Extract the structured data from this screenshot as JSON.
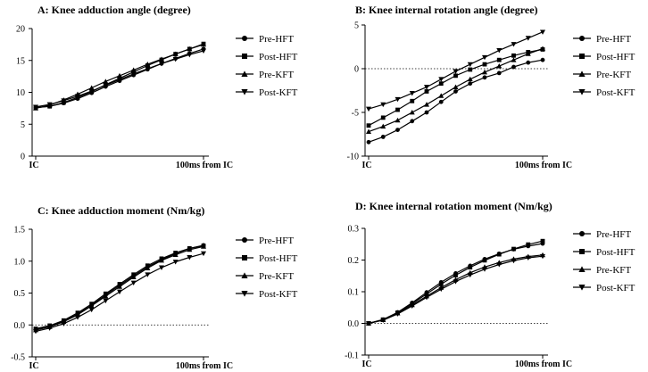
{
  "chart_data": [
    {
      "type": "line",
      "title": "A: Knee adduction angle (degree)",
      "x_tick_labels": [
        "IC",
        "100ms from IC"
      ],
      "ylim": [
        0,
        20
      ],
      "y_ticks": [
        0,
        5,
        10,
        15,
        20
      ],
      "y_tick_labels": [
        "0",
        "5",
        "10",
        "15",
        "20"
      ],
      "legend_position": "right",
      "series": [
        {
          "name": "Pre-HFT",
          "marker": "circle",
          "values": [
            7.6,
            7.8,
            8.3,
            9.0,
            9.9,
            10.9,
            11.8,
            12.7,
            13.6,
            14.5,
            15.3,
            16.1,
            16.8
          ]
        },
        {
          "name": "Post-HFT",
          "marker": "square",
          "values": [
            7.6,
            7.8,
            8.4,
            9.2,
            10.1,
            11.2,
            12.2,
            13.2,
            14.2,
            15.1,
            16.0,
            16.8,
            17.6
          ]
        },
        {
          "name": "Pre-KFT",
          "marker": "triangle-up",
          "values": [
            7.5,
            8.0,
            8.8,
            9.7,
            10.7,
            11.7,
            12.6,
            13.5,
            14.4,
            15.2,
            16.0,
            16.8,
            17.5
          ]
        },
        {
          "name": "Post-KFT",
          "marker": "triangle-down",
          "values": [
            7.7,
            8.1,
            8.7,
            9.4,
            10.2,
            11.1,
            12.0,
            12.9,
            13.7,
            14.5,
            15.2,
            15.9,
            16.5
          ]
        }
      ]
    },
    {
      "type": "line",
      "title": "B: Knee internal rotation angle (degree)",
      "x_tick_labels": [
        "IC",
        "100ms from IC"
      ],
      "ylim": [
        -10,
        5
      ],
      "y_ticks": [
        -10,
        -5,
        0,
        5
      ],
      "y_tick_labels": [
        "-10",
        "-5",
        "0",
        "5"
      ],
      "zero_line": true,
      "legend_position": "right",
      "series": [
        {
          "name": "Pre-HFT",
          "marker": "circle",
          "values": [
            -8.4,
            -7.8,
            -7.0,
            -6.0,
            -5.0,
            -3.8,
            -2.6,
            -1.7,
            -1.0,
            -0.5,
            0.2,
            0.7,
            1.0
          ]
        },
        {
          "name": "Post-HFT",
          "marker": "square",
          "values": [
            -6.5,
            -5.6,
            -4.7,
            -3.7,
            -2.6,
            -1.7,
            -0.8,
            -0.1,
            0.5,
            1.0,
            1.5,
            1.9,
            2.2
          ]
        },
        {
          "name": "Pre-KFT",
          "marker": "triangle-up",
          "values": [
            -7.2,
            -6.6,
            -5.9,
            -5.0,
            -4.1,
            -3.1,
            -2.1,
            -1.2,
            -0.4,
            0.3,
            1.0,
            1.7,
            2.3
          ]
        },
        {
          "name": "Post-KFT",
          "marker": "triangle-down",
          "values": [
            -4.6,
            -4.1,
            -3.5,
            -2.8,
            -2.1,
            -1.2,
            -0.3,
            0.5,
            1.3,
            2.1,
            2.8,
            3.5,
            4.2
          ]
        }
      ]
    },
    {
      "type": "line",
      "title": "C: Knee adduction moment (Nm/kg)",
      "x_tick_labels": [
        "IC",
        "100ms from IC"
      ],
      "ylim": [
        -0.5,
        1.5
      ],
      "y_ticks": [
        -0.5,
        0.0,
        0.5,
        1.0,
        1.5
      ],
      "y_tick_labels": [
        "-0.5",
        "0.0",
        "0.5",
        "1.0",
        "1.5"
      ],
      "zero_line": true,
      "legend_position": "right",
      "series": [
        {
          "name": "Pre-HFT",
          "marker": "circle",
          "values": [
            -0.07,
            -0.02,
            0.06,
            0.17,
            0.31,
            0.47,
            0.62,
            0.77,
            0.91,
            1.02,
            1.12,
            1.2,
            1.25
          ]
        },
        {
          "name": "Post-HFT",
          "marker": "square",
          "values": [
            -0.06,
            -0.01,
            0.07,
            0.19,
            0.33,
            0.49,
            0.64,
            0.79,
            0.93,
            1.04,
            1.13,
            1.2,
            1.24
          ]
        },
        {
          "name": "Pre-KFT",
          "marker": "triangle-up",
          "values": [
            -0.08,
            -0.03,
            0.05,
            0.16,
            0.3,
            0.45,
            0.6,
            0.75,
            0.89,
            1.01,
            1.1,
            1.18,
            1.23
          ]
        },
        {
          "name": "Post-KFT",
          "marker": "triangle-down",
          "values": [
            -0.1,
            -0.05,
            0.02,
            0.12,
            0.24,
            0.38,
            0.52,
            0.66,
            0.79,
            0.9,
            0.99,
            1.06,
            1.12
          ]
        }
      ]
    },
    {
      "type": "line",
      "title": "D: Knee internal rotation moment (Nm/kg)",
      "x_tick_labels": [
        "IC",
        "100ms from IC"
      ],
      "ylim": [
        -0.1,
        0.3
      ],
      "y_ticks": [
        -0.1,
        0.0,
        0.1,
        0.2,
        0.3
      ],
      "y_tick_labels": [
        "-0.1",
        "0.0",
        "0.1",
        "0.2",
        "0.3"
      ],
      "zero_line": true,
      "legend_position": "right",
      "series": [
        {
          "name": "Pre-HFT",
          "marker": "circle",
          "values": [
            0.0,
            0.012,
            0.035,
            0.065,
            0.098,
            0.13,
            0.158,
            0.182,
            0.203,
            0.22,
            0.234,
            0.244,
            0.252
          ]
        },
        {
          "name": "Post-HFT",
          "marker": "square",
          "values": [
            0.0,
            0.012,
            0.034,
            0.062,
            0.093,
            0.124,
            0.152,
            0.177,
            0.199,
            0.218,
            0.235,
            0.249,
            0.26
          ]
        },
        {
          "name": "Pre-KFT",
          "marker": "triangle-up",
          "values": [
            0.0,
            0.011,
            0.032,
            0.058,
            0.086,
            0.113,
            0.138,
            0.16,
            0.178,
            0.192,
            0.203,
            0.211,
            0.216
          ]
        },
        {
          "name": "Post-KFT",
          "marker": "triangle-down",
          "values": [
            0.0,
            0.01,
            0.03,
            0.055,
            0.082,
            0.108,
            0.132,
            0.153,
            0.171,
            0.186,
            0.198,
            0.207,
            0.212
          ]
        }
      ]
    }
  ]
}
